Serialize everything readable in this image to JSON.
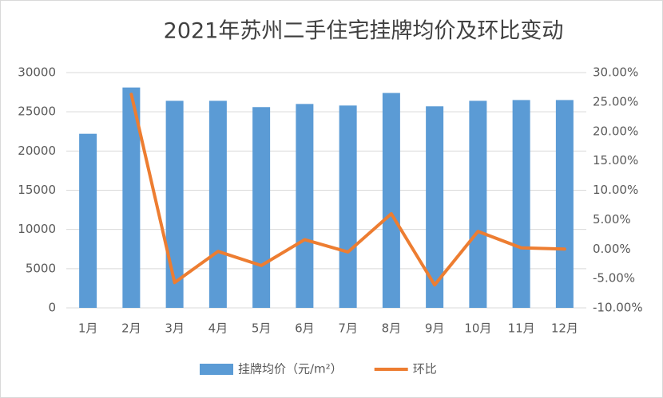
{
  "chart_data": {
    "type": "bar",
    "title": "2021年苏州二手住宅挂牌均价及环比变动",
    "categories": [
      "1月",
      "2月",
      "3月",
      "4月",
      "5月",
      "6月",
      "7月",
      "8月",
      "9月",
      "10月",
      "11月",
      "12月"
    ],
    "series": [
      {
        "name": "挂牌均价（元/m²）",
        "type": "bar",
        "color": "#5b9bd5",
        "values": [
          22200,
          28100,
          26400,
          26400,
          25600,
          26000,
          25800,
          27400,
          25700,
          26400,
          26500,
          26500
        ]
      },
      {
        "name": "环比",
        "type": "line",
        "axis": "y2",
        "color": "#ed7d31",
        "values": [
          null,
          26.3,
          -5.7,
          -0.4,
          -2.8,
          1.6,
          -0.5,
          6.0,
          -6.1,
          3.0,
          0.2,
          0.0
        ]
      }
    ],
    "ylim": [
      0,
      30000
    ],
    "yticks": [
      0,
      5000,
      10000,
      15000,
      20000,
      25000,
      30000
    ],
    "y2lim": [
      -10,
      30
    ],
    "y2ticks": [
      {
        "value": -10,
        "label": "-10.00%"
      },
      {
        "value": -5,
        "label": "-5.00%"
      },
      {
        "value": 0,
        "label": "0.00%"
      },
      {
        "value": 5,
        "label": "5.00%"
      },
      {
        "value": 10,
        "label": "10.00%"
      },
      {
        "value": 15,
        "label": "15.00%"
      },
      {
        "value": 20,
        "label": "20.00%"
      },
      {
        "value": 25,
        "label": "25.00%"
      },
      {
        "value": 30,
        "label": "30.00%"
      }
    ],
    "grid": true,
    "legend": "bottom"
  }
}
